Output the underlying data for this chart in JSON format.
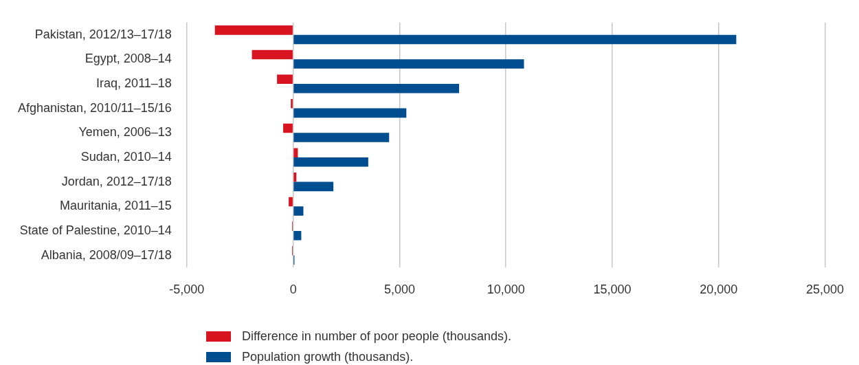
{
  "chart_data": {
    "type": "bar",
    "orientation": "horizontal",
    "categories": [
      "Pakistan, 2012/13–17/18",
      "Egypt, 2008–14",
      "Iraq, 2011–18",
      "Afghanistan, 2010/11–15/16",
      "Yemen, 2006–13",
      "Sudan, 2010–14",
      "Jordan, 2012–17/18",
      "Mauritania, 2011–15",
      "State of Palestine, 2010–14",
      "Albania, 2008/09–17/18"
    ],
    "series": [
      {
        "name": "Difference in number of poor people (thousands).",
        "color": "#d7141f",
        "values": [
          -3680,
          -1940,
          -760,
          -110,
          -470,
          220,
          150,
          -210,
          -50,
          -50
        ]
      },
      {
        "name": "Population growth (thousands).",
        "color": "#004d8f",
        "values": [
          20830,
          10850,
          7800,
          5320,
          4510,
          3530,
          1890,
          480,
          380,
          60
        ]
      }
    ],
    "xlim": [
      -5000,
      25000
    ],
    "xticks": [
      {
        "value": -5000,
        "label": "-5,000"
      },
      0,
      {
        "value": 5000,
        "label": "5,000"
      },
      {
        "value": 10000,
        "label": "10,000"
      },
      {
        "value": 15000,
        "label": "15,000"
      },
      {
        "value": 20000,
        "label": "20,000"
      },
      {
        "value": 25000,
        "label": "25,000"
      }
    ],
    "grid": "x",
    "legend": "bottom"
  }
}
